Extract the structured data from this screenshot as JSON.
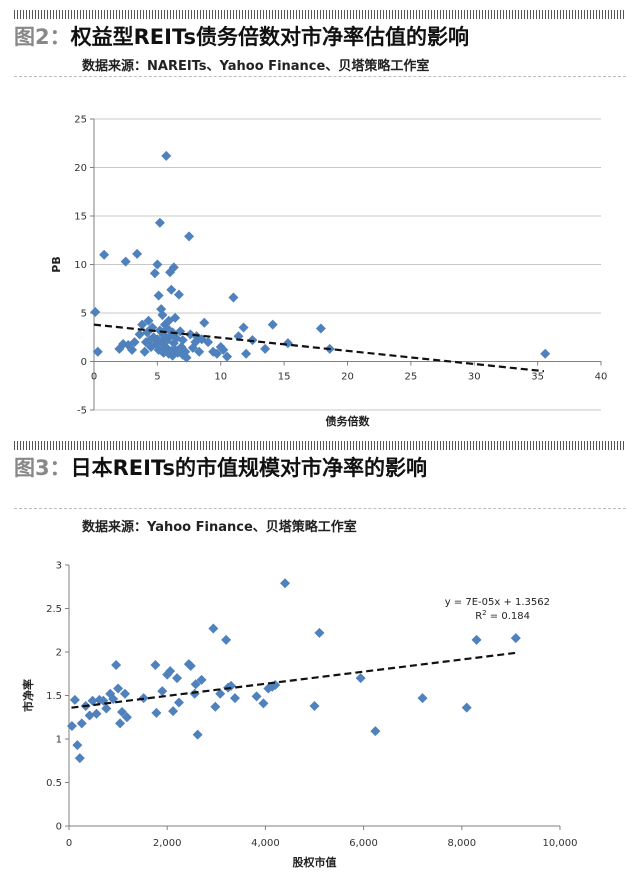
{
  "figures": [
    {
      "number": "图2：",
      "title": "权益型REITs债务倍数对市净率估值的影响",
      "source": "数据来源：NAREITs、Yahoo Finance、贝塔策略工作室"
    },
    {
      "number": "图3：",
      "title": "日本REITs的市值规模对市净率的影响",
      "source": "数据来源：Yahoo Finance、贝塔策略工作室"
    }
  ],
  "colors": {
    "marker": "#4f81bd",
    "grid": "#c8c8c8",
    "trend": "#111111"
  },
  "chart_data": [
    {
      "type": "scatter",
      "title": "",
      "xlabel": "债务倍数",
      "ylabel": "PB",
      "xlim": [
        0,
        40
      ],
      "ylim": [
        -5,
        25
      ],
      "xticks": [
        "0",
        "5",
        "10",
        "15",
        "20",
        "25",
        "30",
        "35",
        "40"
      ],
      "yticks": [
        "-5",
        "0",
        "5",
        "10",
        "15",
        "20",
        "25"
      ],
      "grid": true,
      "legend": "none",
      "trendline": {
        "style": "dashed",
        "from": [
          0,
          3.8
        ],
        "to": [
          35.5,
          -1.0
        ]
      },
      "points": [
        [
          0.1,
          5.1
        ],
        [
          0.3,
          1.0
        ],
        [
          0.8,
          11.0
        ],
        [
          2.0,
          1.3
        ],
        [
          2.5,
          10.3
        ],
        [
          2.3,
          1.8
        ],
        [
          2.7,
          1.7
        ],
        [
          3.0,
          1.2
        ],
        [
          3.2,
          2.0
        ],
        [
          3.4,
          11.1
        ],
        [
          3.6,
          2.8
        ],
        [
          3.8,
          3.8
        ],
        [
          4.0,
          1.0
        ],
        [
          4.1,
          2.0
        ],
        [
          4.2,
          3.0
        ],
        [
          4.3,
          4.2
        ],
        [
          4.4,
          2.2
        ],
        [
          4.5,
          1.5
        ],
        [
          4.6,
          3.5
        ],
        [
          4.7,
          2.5
        ],
        [
          4.8,
          9.1
        ],
        [
          4.9,
          1.8
        ],
        [
          5.0,
          10.0
        ],
        [
          5.0,
          2.3
        ],
        [
          5.1,
          6.8
        ],
        [
          5.1,
          1.2
        ],
        [
          5.2,
          14.3
        ],
        [
          5.2,
          3.2
        ],
        [
          5.3,
          5.4
        ],
        [
          5.3,
          2.0
        ],
        [
          5.4,
          4.8
        ],
        [
          5.4,
          1.0
        ],
        [
          5.5,
          2.7
        ],
        [
          5.5,
          0.9
        ],
        [
          5.6,
          3.8
        ],
        [
          5.6,
          1.5
        ],
        [
          5.7,
          21.2
        ],
        [
          5.7,
          2.1
        ],
        [
          5.8,
          3.4
        ],
        [
          5.8,
          1.3
        ],
        [
          5.9,
          4.2
        ],
        [
          5.9,
          0.8
        ],
        [
          6.0,
          9.2
        ],
        [
          6.0,
          2.6
        ],
        [
          6.1,
          7.4
        ],
        [
          6.1,
          1.1
        ],
        [
          6.2,
          3.0
        ],
        [
          6.2,
          0.6
        ],
        [
          6.3,
          9.7
        ],
        [
          6.3,
          1.9
        ],
        [
          6.4,
          4.5
        ],
        [
          6.4,
          1.2
        ],
        [
          6.5,
          2.4
        ],
        [
          6.6,
          0.9
        ],
        [
          6.7,
          6.9
        ],
        [
          6.8,
          3.1
        ],
        [
          6.9,
          1.5
        ],
        [
          7.0,
          2.2
        ],
        [
          7.0,
          0.7
        ],
        [
          7.2,
          1.0
        ],
        [
          7.3,
          0.4
        ],
        [
          7.5,
          12.9
        ],
        [
          7.6,
          2.8
        ],
        [
          7.8,
          1.4
        ],
        [
          8.0,
          2.0
        ],
        [
          8.1,
          2.6
        ],
        [
          8.3,
          1.0
        ],
        [
          8.5,
          2.3
        ],
        [
          8.7,
          4.0
        ],
        [
          9.0,
          2.0
        ],
        [
          9.4,
          1.0
        ],
        [
          9.7,
          0.8
        ],
        [
          10.0,
          1.5
        ],
        [
          10.2,
          1.2
        ],
        [
          10.5,
          0.5
        ],
        [
          11.0,
          6.6
        ],
        [
          11.4,
          2.6
        ],
        [
          11.8,
          3.5
        ],
        [
          12.0,
          0.8
        ],
        [
          12.5,
          2.2
        ],
        [
          13.5,
          1.3
        ],
        [
          14.1,
          3.8
        ],
        [
          15.3,
          1.9
        ],
        [
          17.9,
          3.4
        ],
        [
          18.6,
          1.3
        ],
        [
          35.6,
          0.8
        ]
      ]
    },
    {
      "type": "scatter",
      "title": "",
      "xlabel": "股权市值",
      "ylabel": "市净率",
      "xlim": [
        0,
        10000
      ],
      "ylim": [
        0,
        3
      ],
      "xticks": [
        "0",
        "2,000",
        "4,000",
        "6,000",
        "8,000",
        "10,000"
      ],
      "yticks": [
        "0",
        "0.5",
        "1",
        "1.5",
        "2",
        "2.5",
        "3"
      ],
      "grid": false,
      "legend": "none",
      "trendline": {
        "style": "dashed",
        "from": [
          50,
          1.36
        ],
        "to": [
          9100,
          1.99
        ],
        "equation": "y = 7E-05x + 1.3562",
        "r2_label": "R",
        "r2_sup": "2",
        "r2_value": " = 0.184"
      },
      "points": [
        [
          60,
          1.15
        ],
        [
          120,
          1.45
        ],
        [
          170,
          0.93
        ],
        [
          220,
          0.78
        ],
        [
          260,
          1.18
        ],
        [
          340,
          1.38
        ],
        [
          420,
          1.27
        ],
        [
          480,
          1.44
        ],
        [
          560,
          1.29
        ],
        [
          620,
          1.45
        ],
        [
          700,
          1.44
        ],
        [
          760,
          1.35
        ],
        [
          840,
          1.52
        ],
        [
          900,
          1.46
        ],
        [
          960,
          1.85
        ],
        [
          1000,
          1.58
        ],
        [
          1040,
          1.18
        ],
        [
          1080,
          1.31
        ],
        [
          1140,
          1.52
        ],
        [
          1180,
          1.25
        ],
        [
          1520,
          1.47
        ],
        [
          1760,
          1.85
        ],
        [
          1780,
          1.3
        ],
        [
          1900,
          1.55
        ],
        [
          2000,
          1.74
        ],
        [
          2060,
          1.78
        ],
        [
          2120,
          1.32
        ],
        [
          2200,
          1.7
        ],
        [
          2240,
          1.42
        ],
        [
          2440,
          1.86
        ],
        [
          2480,
          1.84
        ],
        [
          2560,
          1.52
        ],
        [
          2580,
          1.63
        ],
        [
          2620,
          1.05
        ],
        [
          2700,
          1.68
        ],
        [
          2940,
          2.27
        ],
        [
          2980,
          1.37
        ],
        [
          3080,
          1.52
        ],
        [
          3200,
          2.14
        ],
        [
          3240,
          1.59
        ],
        [
          3300,
          1.61
        ],
        [
          3380,
          1.47
        ],
        [
          3820,
          1.49
        ],
        [
          3960,
          1.41
        ],
        [
          4060,
          1.58
        ],
        [
          4140,
          1.6
        ],
        [
          4200,
          1.62
        ],
        [
          4400,
          2.79
        ],
        [
          5000,
          1.38
        ],
        [
          5100,
          2.22
        ],
        [
          5940,
          1.7
        ],
        [
          6240,
          1.09
        ],
        [
          7200,
          1.47
        ],
        [
          8100,
          1.36
        ],
        [
          8300,
          2.14
        ],
        [
          9100,
          2.16
        ]
      ]
    }
  ]
}
